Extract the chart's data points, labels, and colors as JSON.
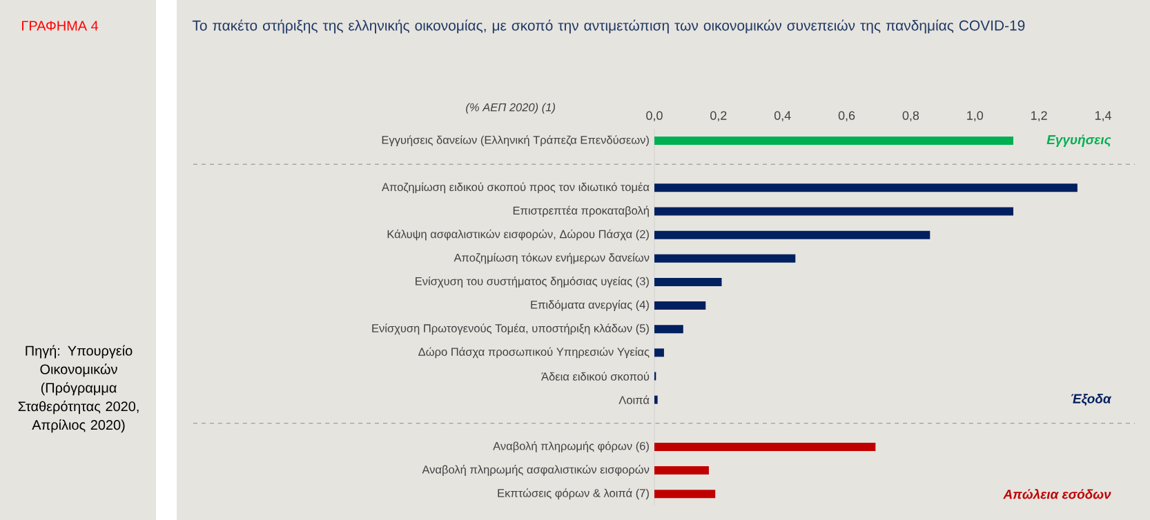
{
  "chart_data": {
    "type": "bar",
    "orientation": "horizontal",
    "title": "Το πακέτο στήριξης της ελληνικής οικονομίας, με σκοπό την αντιμετώπιση των οικονομικών συνεπειών της πανδημίας COVID-19",
    "xlabel": "(% ΑΕΠ 2020) (1)",
    "categories": [
      "Εγγυήσεις δανείων (Ελληνική Τράπεζα Επενδύσεων)",
      null,
      "Αποζημίωση ειδικού σκοπού προς τον ιδιωτικό τομέα",
      "Επιστρεπτέα προκαταβολή",
      "Κάλυψη ασφαλιστικών εισφορών, Δώρου Πάσχα (2)",
      "Αποζημίωση τόκων ενήμερων δανείων",
      "Ενίσχυση του συστήματος δημόσιας υγείας (3)",
      "Επιδόματα ανεργίας (4)",
      "Ενίσχυση Πρωτογενούς Τομέα, υποστήριξη κλάδων (5)",
      "Δώρο Πάσχα προσωπικού Υπηρεσιών Υγείας",
      "Άδεια ειδικού σκοπού",
      "Λοιπά",
      null,
      "Αναβολή πληρωμής φόρων (6)",
      "Αναβολή πληρωμής ασφαλιστικών εισφορών",
      "Εκπτώσεις φόρων & λοιπά (7)"
    ],
    "series": [
      {
        "name": "Εγγυήσεις",
        "color": "#00b050",
        "values": [
          1.12,
          null,
          null,
          null,
          null,
          null,
          null,
          null,
          null,
          null,
          null,
          null,
          null,
          null,
          null,
          null
        ]
      },
      {
        "name": "Έξοδα",
        "color": "#002060",
        "values": [
          null,
          null,
          1.32,
          1.12,
          0.86,
          0.44,
          0.21,
          0.16,
          0.09,
          0.03,
          0.005,
          0.01,
          null,
          null,
          null,
          null
        ]
      },
      {
        "name": "Απώλεια εσόδων",
        "color": "#c00000",
        "values": [
          null,
          null,
          null,
          null,
          null,
          null,
          null,
          null,
          null,
          null,
          null,
          null,
          null,
          0.69,
          0.17,
          0.19
        ]
      }
    ],
    "xlim": [
      0,
      1.4
    ],
    "xticks": [
      {
        "value": 0,
        "label": "0,0"
      },
      {
        "value": 0.2,
        "label": "0,2"
      },
      {
        "value": 0.4,
        "label": "0,4"
      },
      {
        "value": 0.6,
        "label": "0,6"
      },
      {
        "value": 0.8,
        "label": "0,8"
      },
      {
        "value": 1.0,
        "label": "1,0"
      },
      {
        "value": 1.2,
        "label": "1,2"
      },
      {
        "value": 1.4,
        "label": "1,4"
      }
    ],
    "annotations": [
      "ΓΡΑΦΗΜΑ 4",
      "Πηγή: Υπουργείο Οικονομικών (Πρόγραμμα Σταθερότητας 2020, Απρίλιος 2020)"
    ]
  }
}
